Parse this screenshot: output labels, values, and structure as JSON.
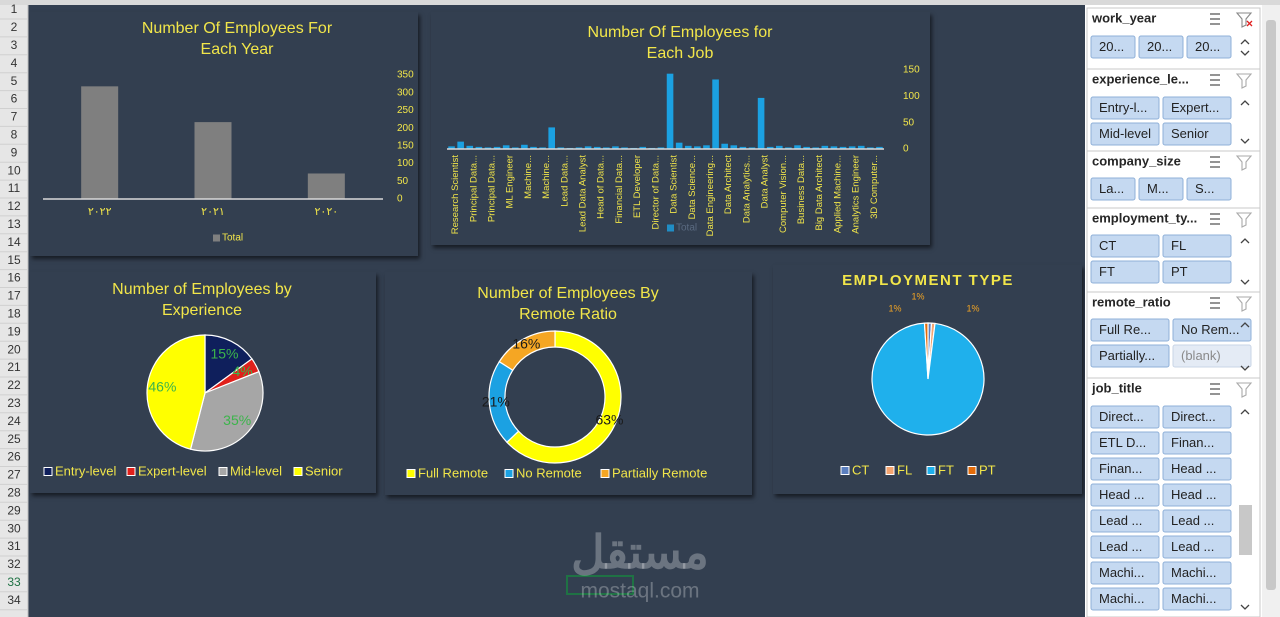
{
  "row_headers": [
    1,
    2,
    3,
    4,
    5,
    6,
    7,
    8,
    9,
    10,
    11,
    12,
    13,
    14,
    15,
    16,
    17,
    18,
    19,
    20,
    21,
    22,
    23,
    24,
    25,
    26,
    27,
    28,
    29,
    30,
    31,
    32,
    33,
    34
  ],
  "watermark": {
    "arabic": "مستقل",
    "latin": "mostaql.com"
  },
  "chart_data": [
    {
      "type": "bar",
      "title": "Number Of Employees For Each Year",
      "categories": [
        "٢٠٢٢",
        "٢٠٢١",
        "٢٠٢٠"
      ],
      "series": [
        {
          "name": "Total",
          "color": "#7f7f7f",
          "values": [
            318,
            217,
            72
          ]
        }
      ],
      "ylim": [
        0,
        350
      ],
      "yticks": [
        0,
        50,
        100,
        150,
        200,
        250,
        300,
        350
      ],
      "y_axis_side": "right"
    },
    {
      "type": "bar",
      "title": "Number Of Employees for Each Job",
      "categories": [
        "Research Scientist",
        null,
        "Principal Data...",
        null,
        "Principal Data...",
        null,
        "ML Engineer",
        null,
        "Machine...",
        null,
        "Machine...",
        null,
        "Lead Data...",
        null,
        "Lead Data Analyst",
        null,
        "Head of Data...",
        null,
        "Financial Data...",
        null,
        "ETL Developer",
        null,
        "Director of Data...",
        null,
        "Data Scientist",
        null,
        "Data Science...",
        null,
        "Data Engineering...",
        null,
        "Data Architect",
        null,
        "Data Analytics...",
        null,
        "Data Analyst",
        null,
        "Computer Vision...",
        null,
        "Business Data...",
        null,
        "Big Data Architect",
        null,
        "Applied Machine...",
        null,
        "Analytics Engineer",
        null,
        "3D Computer...",
        null
      ],
      "series": [
        {
          "name": "Total",
          "color": "#1ba1e2",
          "values": [
            5,
            14,
            6,
            4,
            3,
            4,
            7,
            3,
            8,
            4,
            3,
            41,
            3,
            2,
            3,
            5,
            4,
            3,
            5,
            3,
            2,
            4,
            2,
            3,
            143,
            12,
            6,
            5,
            7,
            132,
            10,
            7,
            4,
            3,
            97,
            4,
            6,
            3,
            7,
            4,
            3,
            6,
            5,
            4,
            5,
            6,
            3,
            4
          ]
        }
      ],
      "ylim": [
        0,
        150
      ],
      "yticks": [
        0,
        50,
        100,
        150
      ],
      "y_axis_side": "right"
    },
    {
      "type": "pie",
      "title": "Number of Employees by Experience",
      "categories": [
        "Entry-level",
        "Expert-level",
        "Mid-level",
        "Senior"
      ],
      "values": [
        15,
        4,
        35,
        46
      ],
      "value_labels": [
        "15%",
        "4%",
        "35%",
        "46%"
      ],
      "colors": [
        "#0f1f5c",
        "#e0201b",
        "#a6a6a6",
        "#ffff00"
      ],
      "label_color": "#3cb44b",
      "legend": "bottom"
    },
    {
      "type": "doughnut",
      "title": "Number of Employees By Remote Ratio",
      "categories": [
        "Full Remote",
        "No Remote",
        "Partially Remote"
      ],
      "values": [
        63,
        21,
        16
      ],
      "value_labels": [
        "63%",
        "21%",
        "16%"
      ],
      "colors": [
        "#ffff00",
        "#1ba1e2",
        "#f5a623"
      ],
      "label_color": "#1a1a1a",
      "legend": "bottom"
    },
    {
      "type": "pie",
      "title": "EMPLOYMENT TYPE",
      "categories": [
        "CT",
        "FL",
        "FT",
        "PT"
      ],
      "values": [
        1,
        1,
        97,
        1
      ],
      "value_labels": [
        "1%",
        "1%",
        null,
        "1%"
      ],
      "colors": [
        "#5b7fbf",
        "#f4a470",
        "#1fb0ec",
        "#e46c0a"
      ],
      "label_color": "#f5a623",
      "legend": "bottom"
    }
  ],
  "slicers": [
    {
      "title": "work_year",
      "items": [
        "20...",
        "20...",
        "20..."
      ]
    },
    {
      "title": "experience_le...",
      "items": [
        "Entry-l...",
        "Expert...",
        "Mid-level",
        "Senior"
      ]
    },
    {
      "title": "company_size",
      "items": [
        "La...",
        "M...",
        "S..."
      ]
    },
    {
      "title": "employment_ty...",
      "items": [
        "CT",
        "FL",
        "FT",
        "PT"
      ]
    },
    {
      "title": "remote_ratio",
      "items": [
        "Full Re...",
        "No Rem...",
        "Partially...",
        "(blank)"
      ]
    },
    {
      "title": "job_title",
      "items": [
        "Direct...",
        "Direct...",
        "ETL D...",
        "Finan...",
        "Finan...",
        "Head ...",
        "Head ...",
        "Head ...",
        "Lead ...",
        "Lead ...",
        "Lead ...",
        "Lead ...",
        "Machi...",
        "Machi...",
        "Machi...",
        "Machi..."
      ]
    }
  ]
}
